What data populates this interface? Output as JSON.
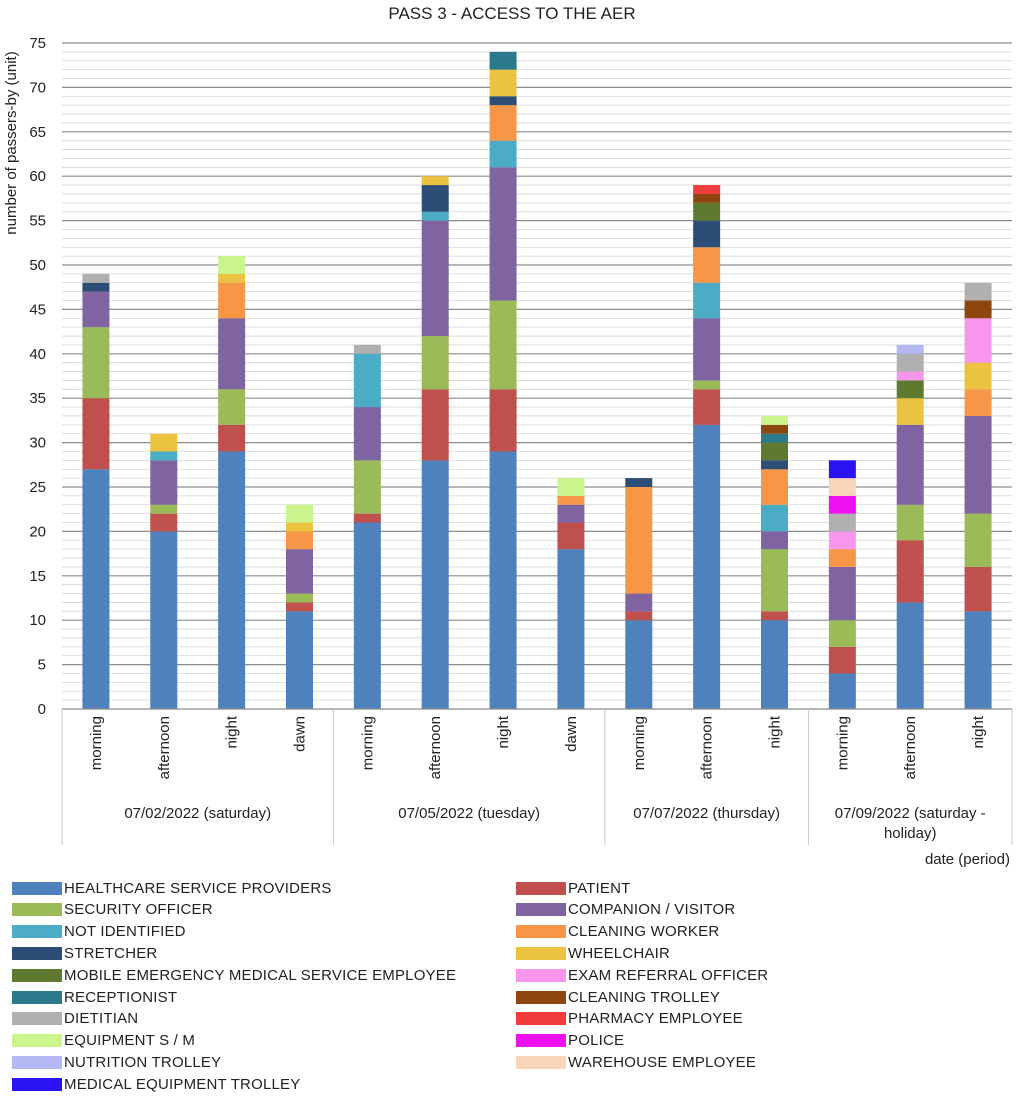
{
  "chart_data": {
    "type": "bar",
    "stacked": true,
    "title": "PASS 3 - ACCESS TO THE AER",
    "ylabel": "number of passers-by (unit)",
    "xlabel": "date (period)",
    "ylim": [
      0,
      75
    ],
    "yticks": [
      0,
      5,
      10,
      15,
      20,
      25,
      30,
      35,
      40,
      45,
      50,
      55,
      60,
      65,
      70,
      75
    ],
    "grid": "horizontal",
    "legend_position": "bottom",
    "groups": [
      {
        "label": "07/02/2022 (saturday)",
        "categories": [
          "morning",
          "afternoon",
          "night",
          "dawn"
        ]
      },
      {
        "label": "07/05/2022 (tuesday)",
        "categories": [
          "morning",
          "afternoon",
          "night",
          "dawn"
        ]
      },
      {
        "label": "07/07/2022 (thursday)",
        "categories": [
          "morning",
          "afternoon",
          "night"
        ]
      },
      {
        "label": "07/09/2022 (saturday - holiday)",
        "label_lines": [
          "07/09/2022 (saturday -",
          "holiday)"
        ],
        "categories": [
          "morning",
          "afternoon",
          "night"
        ]
      }
    ],
    "categories": [
      "morning",
      "afternoon",
      "night",
      "dawn",
      "morning",
      "afternoon",
      "night",
      "dawn",
      "morning",
      "afternoon",
      "night",
      "morning",
      "afternoon",
      "night"
    ],
    "series": [
      {
        "name": "HEALTHCARE SERVICE PROVIDERS",
        "color": "#4f81bd",
        "values": [
          27,
          20,
          29,
          11,
          21,
          28,
          29,
          18,
          10,
          32,
          10,
          4,
          12,
          11
        ]
      },
      {
        "name": "PATIENT",
        "color": "#c0504d",
        "values": [
          8,
          2,
          3,
          1,
          1,
          8,
          7,
          3,
          1,
          4,
          1,
          3,
          7,
          5
        ]
      },
      {
        "name": "SECURITY OFFICER",
        "color": "#9bbb59",
        "values": [
          8,
          1,
          4,
          1,
          6,
          6,
          10,
          0,
          0,
          1,
          7,
          3,
          4,
          6
        ]
      },
      {
        "name": "COMPANION / VISITOR",
        "color": "#8064a2",
        "values": [
          4,
          5,
          8,
          5,
          6,
          13,
          15,
          2,
          2,
          7,
          2,
          6,
          9,
          11
        ]
      },
      {
        "name": "NOT IDENTIFIED",
        "color": "#4bacc6",
        "values": [
          0,
          1,
          0,
          0,
          6,
          1,
          3,
          0,
          0,
          4,
          3,
          0,
          0,
          0
        ]
      },
      {
        "name": "CLEANING WORKER",
        "color": "#f79646",
        "values": [
          0,
          0,
          4,
          2,
          0,
          0,
          4,
          1,
          12,
          4,
          4,
          2,
          0,
          3
        ]
      },
      {
        "name": "STRETCHER",
        "color": "#2c4d75",
        "values": [
          1,
          0,
          0,
          0,
          0,
          3,
          1,
          0,
          1,
          3,
          1,
          0,
          0,
          0
        ]
      },
      {
        "name": "WHEELCHAIR",
        "color": "#ecc340",
        "values": [
          0,
          2,
          1,
          1,
          0,
          1,
          3,
          0,
          0,
          0,
          0,
          0,
          3,
          3
        ]
      },
      {
        "name": "MOBILE EMERGENCY MEDICAL SERVICE EMPLOYEE",
        "color": "#5e7a30",
        "values": [
          0,
          0,
          0,
          0,
          0,
          0,
          0,
          0,
          0,
          2,
          2,
          0,
          2,
          0
        ]
      },
      {
        "name": "EXAM REFERRAL OFFICER",
        "color": "#f796ec",
        "values": [
          0,
          0,
          0,
          0,
          0,
          0,
          0,
          0,
          0,
          0,
          0,
          2,
          1,
          5
        ]
      },
      {
        "name": "RECEPTIONIST",
        "color": "#2a7a8c",
        "values": [
          0,
          0,
          0,
          0,
          0,
          0,
          2,
          0,
          0,
          0,
          1,
          0,
          0,
          0
        ]
      },
      {
        "name": "CLEANING TROLLEY",
        "color": "#8c4610",
        "values": [
          0,
          0,
          0,
          0,
          0,
          0,
          0,
          0,
          0,
          1,
          1,
          0,
          0,
          2
        ]
      },
      {
        "name": "DIETITIAN",
        "color": "#b0b0b0",
        "values": [
          1,
          0,
          0,
          0,
          1,
          0,
          0,
          0,
          0,
          0,
          0,
          2,
          2,
          2
        ]
      },
      {
        "name": "PHARMACY EMPLOYEE",
        "color": "#f03c3c",
        "values": [
          0,
          0,
          0,
          0,
          0,
          0,
          0,
          0,
          0,
          1,
          0,
          0,
          0,
          0
        ]
      },
      {
        "name": "EQUIPMENT S / M",
        "color": "#ccf48c",
        "values": [
          0,
          0,
          2,
          2,
          0,
          0,
          0,
          2,
          0,
          0,
          1,
          0,
          0,
          0
        ]
      },
      {
        "name": "POLICE",
        "color": "#ee10ee",
        "values": [
          0,
          0,
          0,
          0,
          0,
          0,
          0,
          0,
          0,
          0,
          0,
          2,
          0,
          0
        ]
      },
      {
        "name": "NUTRITION TROLLEY",
        "color": "#b4b8f4",
        "values": [
          0,
          0,
          0,
          0,
          0,
          0,
          0,
          0,
          0,
          0,
          0,
          0,
          1,
          0
        ]
      },
      {
        "name": "WAREHOUSE EMPLOYEE",
        "color": "#f8d4b8",
        "values": [
          0,
          0,
          0,
          0,
          0,
          0,
          0,
          0,
          0,
          0,
          0,
          2,
          0,
          0
        ]
      },
      {
        "name": "MEDICAL EQUIPMENT TROLLEY",
        "color": "#2a14f4",
        "values": [
          0,
          0,
          0,
          0,
          0,
          0,
          0,
          0,
          0,
          0,
          0,
          2,
          0,
          0
        ]
      }
    ]
  }
}
